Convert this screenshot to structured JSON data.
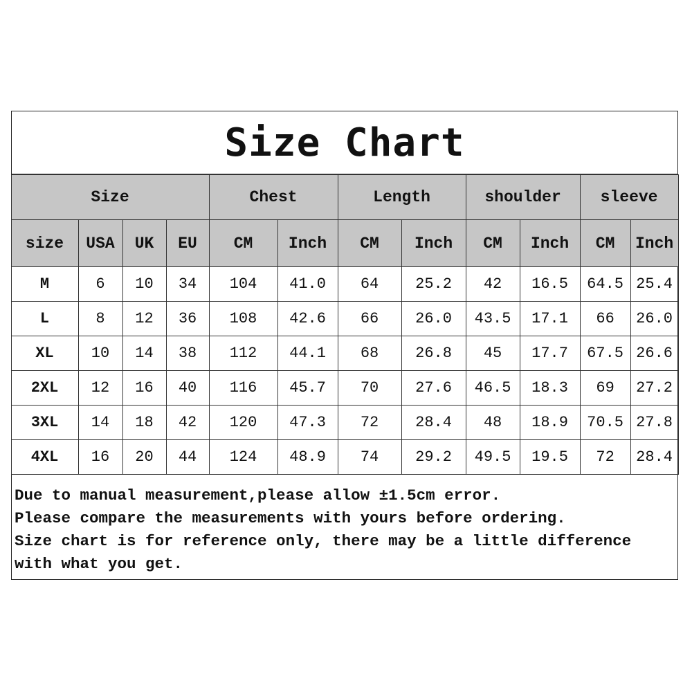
{
  "title": "Size Chart",
  "header_groups": [
    "Size",
    "Chest",
    "Length",
    "shoulder",
    "sleeve"
  ],
  "sub_headers": [
    "size",
    "USA",
    "UK",
    "EU",
    "CM",
    "Inch",
    "CM",
    "Inch",
    "CM",
    "Inch",
    "CM",
    "Inch"
  ],
  "rows": [
    [
      "M",
      "6",
      "10",
      "34",
      "104",
      "41.0",
      "64",
      "25.2",
      "42",
      "16.5",
      "64.5",
      "25.4"
    ],
    [
      "L",
      "8",
      "12",
      "36",
      "108",
      "42.6",
      "66",
      "26.0",
      "43.5",
      "17.1",
      "66",
      "26.0"
    ],
    [
      "XL",
      "10",
      "14",
      "38",
      "112",
      "44.1",
      "68",
      "26.8",
      "45",
      "17.7",
      "67.5",
      "26.6"
    ],
    [
      "2XL",
      "12",
      "16",
      "40",
      "116",
      "45.7",
      "70",
      "27.6",
      "46.5",
      "18.3",
      "69",
      "27.2"
    ],
    [
      "3XL",
      "14",
      "18",
      "42",
      "120",
      "47.3",
      "72",
      "28.4",
      "48",
      "18.9",
      "70.5",
      "27.8"
    ],
    [
      "4XL",
      "16",
      "20",
      "44",
      "124",
      "48.9",
      "74",
      "29.2",
      "49.5",
      "19.5",
      "72",
      "28.4"
    ]
  ],
  "notes": [
    "Due to manual measurement,please allow ±1.5cm error.",
    "Please compare the measurements with yours before ordering.",
    "Size chart is for reference only, there may be a little difference",
    "with what you get."
  ],
  "colors": {
    "header_bg": "#c6c6c6",
    "border": "#333333"
  }
}
